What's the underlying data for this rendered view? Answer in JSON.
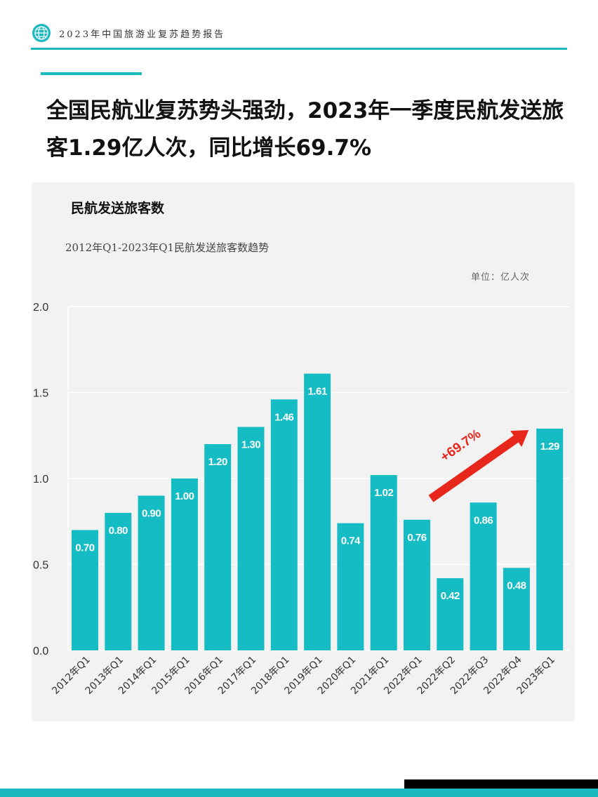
{
  "header": {
    "report_title": "2023年中国旅游业复苏趋势报告",
    "logo_icon": "globe-icon",
    "accent_color": "#1bb8c0"
  },
  "headline": "全国民航业复苏势头强劲，2023年一季度民航发送旅客1.29亿人次，同比增长69.7%",
  "card": {
    "title": "民航发送旅客数",
    "subtitle": "2012年Q1-2023年Q1民航发送旅客数趋势",
    "unit": "单位：亿人次"
  },
  "chart_data": {
    "type": "bar",
    "categories": [
      "2012年Q1",
      "2013年Q1",
      "2014年Q1",
      "2015年Q1",
      "2016年Q1",
      "2017年Q1",
      "2018年Q1",
      "2019年Q1",
      "2020年Q1",
      "2021年Q1",
      "2022年Q1",
      "2022年Q2",
      "2022年Q3",
      "2022年Q4",
      "2023年Q1"
    ],
    "values": [
      0.7,
      0.8,
      0.9,
      1.0,
      1.2,
      1.3,
      1.46,
      1.61,
      0.74,
      1.02,
      0.76,
      0.42,
      0.86,
      0.48,
      1.29
    ],
    "value_labels": [
      "0.70",
      "0.80",
      "0.90",
      "1.00",
      "1.20",
      "1.30",
      "1.46",
      "1.61",
      "0.74",
      "1.02",
      "0.76",
      "0.42",
      "0.86",
      "0.48",
      "1.29"
    ],
    "yticks": [
      "0.0",
      "0.5",
      "1.0",
      "1.5",
      "2.0"
    ],
    "ylim": [
      0,
      2.0
    ],
    "grid": true,
    "bar_color": "#16bcc4",
    "annotation": {
      "text": "+69.7%",
      "color": "#e8271c",
      "from_index": 10,
      "to_index": 14
    }
  }
}
